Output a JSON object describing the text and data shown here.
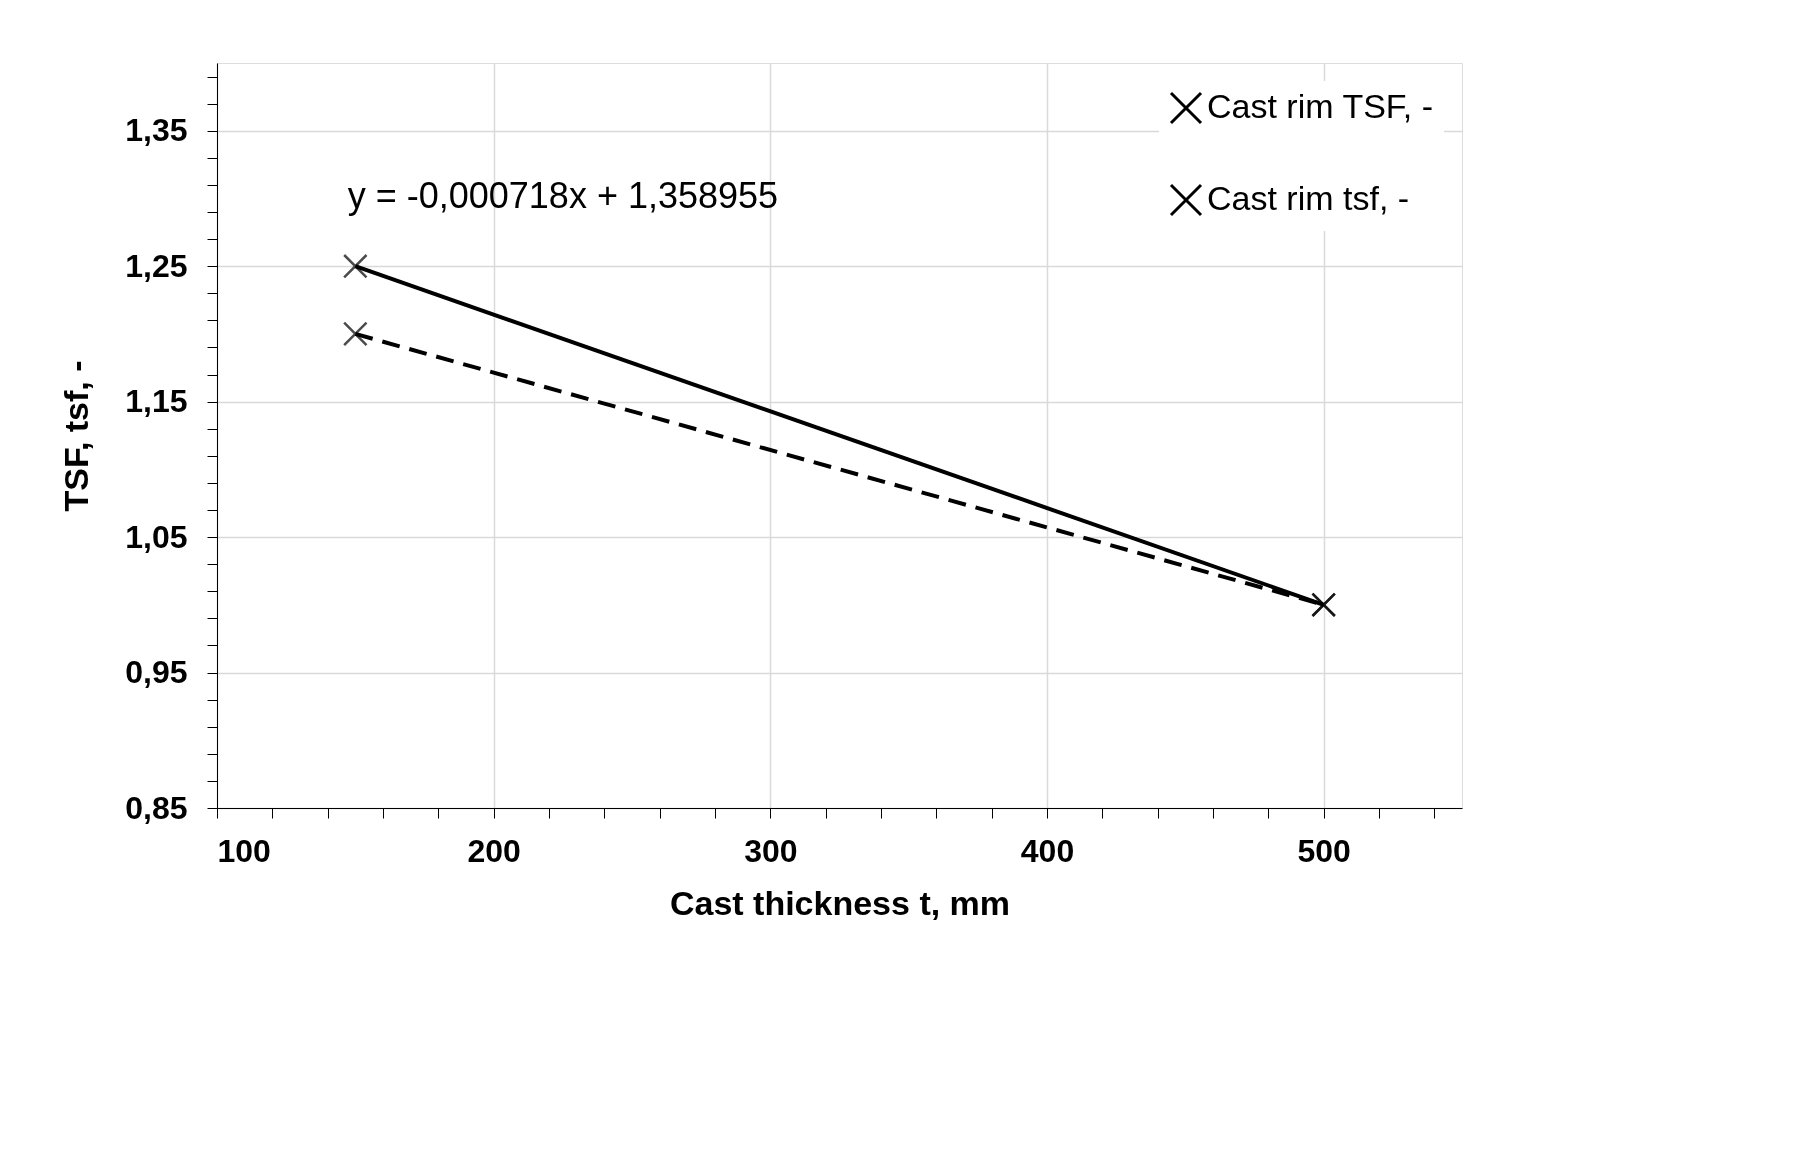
{
  "chart_data": {
    "type": "line",
    "xlabel": "Cast thickness t, mm",
    "ylabel": "TSF, tsf, -",
    "x": [
      150,
      500
    ],
    "series": [
      {
        "name": "Cast rim TSF, -",
        "color": "#000000",
        "values": [
          1.25,
          1.0
        ],
        "line_style": "solid",
        "marker": "cross"
      },
      {
        "name": "Cast rim tsf, -",
        "color": "#000000",
        "values": [
          1.2,
          1.0
        ],
        "line_style": "dashed",
        "marker": "cross"
      }
    ],
    "xlim": [
      100,
      550
    ],
    "xticks": [
      100,
      {
        "value": 120,
        "label": null
      },
      {
        "value": 140,
        "label": null
      },
      {
        "value": 160,
        "label": null
      },
      {
        "value": 180,
        "label": null
      },
      200,
      {
        "value": 220,
        "label": null
      },
      {
        "value": 240,
        "label": null
      },
      {
        "value": 260,
        "label": null
      },
      {
        "value": 280,
        "label": null
      },
      300,
      {
        "value": 320,
        "label": null
      },
      {
        "value": 340,
        "label": null
      },
      {
        "value": 360,
        "label": null
      },
      {
        "value": 380,
        "label": null
      },
      400,
      {
        "value": 420,
        "label": null
      },
      {
        "value": 440,
        "label": null
      },
      {
        "value": 460,
        "label": null
      },
      {
        "value": 480,
        "label": null
      },
      500,
      {
        "value": 520,
        "label": null
      },
      {
        "value": 540,
        "label": null
      }
    ],
    "ylim": [
      0.85,
      1.4
    ],
    "yticks": [
      {
        "value": 0.85,
        "label": "0,85"
      },
      {
        "value": 0.87,
        "label": null
      },
      {
        "value": 0.89,
        "label": null
      },
      {
        "value": 0.91,
        "label": null
      },
      {
        "value": 0.93,
        "label": null
      },
      {
        "value": 0.95,
        "label": "0,95"
      },
      {
        "value": 0.97,
        "label": null
      },
      {
        "value": 0.99,
        "label": null
      },
      {
        "value": 1.01,
        "label": null
      },
      {
        "value": 1.03,
        "label": null
      },
      {
        "value": 1.05,
        "label": "1,05"
      },
      {
        "value": 1.07,
        "label": null
      },
      {
        "value": 1.09,
        "label": null
      },
      {
        "value": 1.11,
        "label": null
      },
      {
        "value": 1.13,
        "label": null
      },
      {
        "value": 1.15,
        "label": "1,15"
      },
      {
        "value": 1.17,
        "label": null
      },
      {
        "value": 1.19,
        "label": null
      },
      {
        "value": 1.21,
        "label": null
      },
      {
        "value": 1.23,
        "label": null
      },
      {
        "value": 1.25,
        "label": "1,25"
      },
      {
        "value": 1.27,
        "label": null
      },
      {
        "value": 1.29,
        "label": null
      },
      {
        "value": 1.31,
        "label": null
      },
      {
        "value": 1.33,
        "label": null
      },
      {
        "value": 1.35,
        "label": "1,35"
      },
      {
        "value": 1.37,
        "label": null
      },
      {
        "value": 1.39,
        "label": null
      }
    ],
    "annotations": [
      "y = -0,000718x + 1,358955"
    ],
    "grid": true,
    "legend": "top right"
  }
}
